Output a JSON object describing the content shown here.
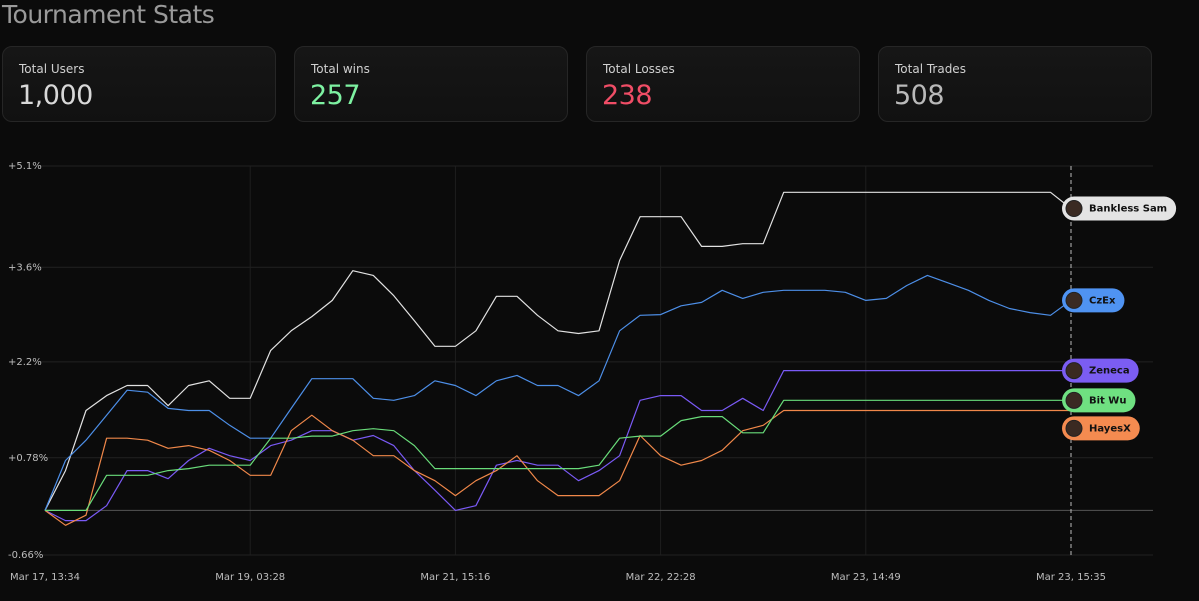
{
  "title": "Tournament Stats",
  "stats": [
    {
      "label": "Total Users",
      "value": "1,000",
      "color": "#d8d8d8"
    },
    {
      "label": "Total wins",
      "value": 257,
      "color": "#7ef2a2"
    },
    {
      "label": "Total Losses",
      "value": 238,
      "color": "#f04d66"
    },
    {
      "label": "Total Trades",
      "value": 508,
      "color": "#b9b9b9"
    }
  ],
  "chart_data": {
    "type": "line",
    "x": [
      0,
      1,
      2,
      3,
      4,
      5,
      6,
      7,
      8,
      9,
      10,
      11,
      12,
      13,
      14,
      15,
      16,
      17,
      18,
      19,
      20,
      21,
      22,
      23,
      24,
      25,
      26,
      27,
      28,
      29,
      30,
      31,
      32,
      33,
      34,
      35,
      36,
      37,
      38,
      39,
      40,
      41,
      42,
      43,
      44,
      45,
      46,
      47,
      48,
      49,
      50
    ],
    "xlim": [
      0,
      50
    ],
    "xticks": [
      {
        "value": 0,
        "label": "Mar 17, 13:34"
      },
      {
        "value": 10,
        "label": "Mar 19, 03:28"
      },
      {
        "value": 20,
        "label": "Mar 21, 15:16"
      },
      {
        "value": 30,
        "label": "Mar 22, 22:28"
      },
      {
        "value": 40,
        "label": "Mar 23, 14:49"
      },
      {
        "value": 50,
        "label": "Mar 23, 15:35"
      }
    ],
    "ylim": [
      -0.66,
      5.1
    ],
    "yticks": [
      {
        "value": 5.1,
        "label": "+5.1%"
      },
      {
        "value": 3.6,
        "label": "+3.6%"
      },
      {
        "value": 2.2,
        "label": "+2.2%"
      },
      {
        "value": 0.78,
        "label": "+0.78%"
      },
      {
        "value": -0.66,
        "label": "-0.66%"
      }
    ],
    "grid": true,
    "series": [
      {
        "name": "Bankless Sam",
        "color": "#e2e2e2",
        "badge_color": "#e4e4e4",
        "values": [
          0,
          0.59,
          1.48,
          1.7,
          1.85,
          1.85,
          1.55,
          1.85,
          1.92,
          1.66,
          1.66,
          2.37,
          2.66,
          2.87,
          3.11,
          3.55,
          3.48,
          3.18,
          2.81,
          2.43,
          2.43,
          2.66,
          3.17,
          3.17,
          2.89,
          2.66,
          2.62,
          2.66,
          3.7,
          4.35,
          4.35,
          4.35,
          3.91,
          3.91,
          3.95,
          3.95,
          4.71,
          4.71,
          4.71,
          4.71,
          4.71,
          4.71,
          4.71,
          4.71,
          4.71,
          4.71,
          4.71,
          4.71,
          4.71,
          4.71,
          4.47
        ]
      },
      {
        "name": "CzEx",
        "color": "#4d8fe8",
        "badge_color": "#4f93f2",
        "values": [
          0,
          0.74,
          1.04,
          1.41,
          1.78,
          1.75,
          1.51,
          1.48,
          1.48,
          1.26,
          1.07,
          1.07,
          1.51,
          1.95,
          1.95,
          1.95,
          1.66,
          1.63,
          1.7,
          1.92,
          1.85,
          1.7,
          1.92,
          2.0,
          1.85,
          1.85,
          1.7,
          1.92,
          2.66,
          2.89,
          2.9,
          3.03,
          3.08,
          3.26,
          3.14,
          3.23,
          3.26,
          3.26,
          3.26,
          3.23,
          3.11,
          3.14,
          3.33,
          3.48,
          3.37,
          3.26,
          3.11,
          2.99,
          2.93,
          2.89,
          3.11
        ]
      },
      {
        "name": "Zeneca",
        "color": "#7a5af5",
        "badge_color": "#7b5df2",
        "values": [
          0,
          -0.15,
          -0.15,
          0.07,
          0.59,
          0.59,
          0.47,
          0.74,
          0.92,
          0.81,
          0.74,
          0.96,
          1.04,
          1.18,
          1.18,
          1.04,
          1.11,
          0.96,
          0.59,
          0.3,
          0,
          0.07,
          0.67,
          0.74,
          0.67,
          0.67,
          0.44,
          0.59,
          0.81,
          1.63,
          1.7,
          1.7,
          1.48,
          1.48,
          1.66,
          1.48,
          2.07,
          2.07,
          2.07,
          2.07,
          2.07,
          2.07,
          2.07,
          2.07,
          2.07,
          2.07,
          2.07,
          2.07,
          2.07,
          2.07,
          2.07
        ]
      },
      {
        "name": "HayesX",
        "color": "#f0884a",
        "badge_color": "#f48b50",
        "values": [
          0,
          -0.22,
          -0.07,
          1.07,
          1.07,
          1.04,
          0.92,
          0.96,
          0.89,
          0.74,
          0.52,
          0.52,
          1.18,
          1.41,
          1.18,
          1.04,
          0.81,
          0.81,
          0.59,
          0.44,
          0.22,
          0.44,
          0.59,
          0.81,
          0.44,
          0.22,
          0.22,
          0.22,
          0.44,
          1.11,
          0.81,
          0.67,
          0.74,
          0.89,
          1.18,
          1.26,
          1.48,
          1.48,
          1.48,
          1.48,
          1.48,
          1.48,
          1.48,
          1.48,
          1.48,
          1.48,
          1.48,
          1.48,
          1.48,
          1.48,
          1.48
        ]
      },
      {
        "name": "Bit Wu",
        "color": "#69dc7a",
        "badge_color": "#6fe081",
        "values": [
          0,
          0,
          0,
          0.52,
          0.52,
          0.52,
          0.59,
          0.62,
          0.67,
          0.67,
          0.67,
          1.07,
          1.07,
          1.1,
          1.1,
          1.18,
          1.21,
          1.18,
          0.96,
          0.62,
          0.62,
          0.62,
          0.62,
          0.62,
          0.62,
          0.62,
          0.62,
          0.67,
          1.07,
          1.1,
          1.1,
          1.33,
          1.39,
          1.39,
          1.15,
          1.15,
          1.63,
          1.63,
          1.63,
          1.63,
          1.63,
          1.63,
          1.63,
          1.63,
          1.63,
          1.63,
          1.63,
          1.63,
          1.63,
          1.63,
          1.63
        ]
      }
    ]
  }
}
